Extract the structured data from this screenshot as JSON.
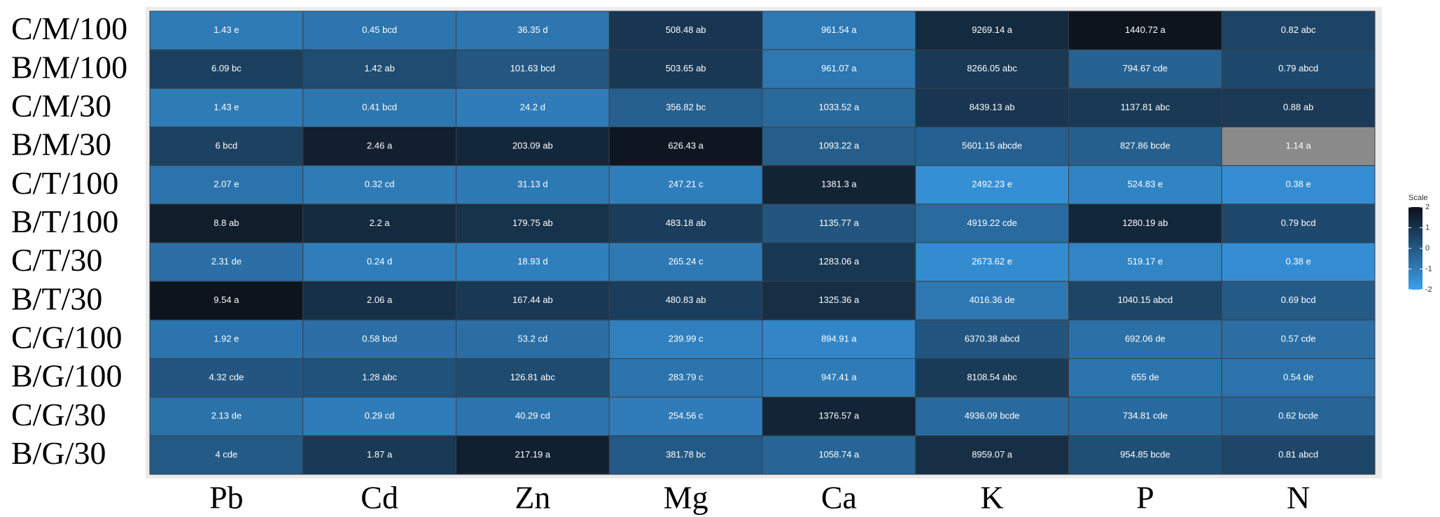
{
  "chart_data": {
    "type": "heatmap",
    "rows": [
      "C/M/100",
      "B/M/100",
      "C/M/30",
      "B/M/30",
      "C/T/100",
      "B/T/100",
      "C/T/30",
      "B/T/30",
      "C/G/100",
      "B/G/100",
      "C/G/30",
      "B/G/30"
    ],
    "columns": [
      "Pb",
      "Cd",
      "Zn",
      "Mg",
      "Ca",
      "K",
      "P",
      "N"
    ],
    "values": [
      [
        1.43,
        0.45,
        36.35,
        508.48,
        961.54,
        9269.14,
        1440.72,
        0.82
      ],
      [
        6.09,
        1.42,
        101.63,
        503.65,
        961.07,
        8266.05,
        794.67,
        0.79
      ],
      [
        1.43,
        0.41,
        24.2,
        356.82,
        1033.52,
        8439.13,
        1137.81,
        0.88
      ],
      [
        6,
        2.46,
        203.09,
        626.43,
        1093.22,
        5601.15,
        827.86,
        1.14
      ],
      [
        2.07,
        0.32,
        31.13,
        247.21,
        1381.3,
        2492.23,
        524.83,
        0.38
      ],
      [
        8.8,
        2.2,
        179.75,
        483.18,
        1135.77,
        4919.22,
        1280.19,
        0.79
      ],
      [
        2.31,
        0.24,
        18.93,
        265.24,
        1283.06,
        2673.62,
        519.17,
        0.38
      ],
      [
        9.54,
        2.06,
        167.44,
        480.83,
        1325.36,
        4016.36,
        1040.15,
        0.69
      ],
      [
        1.92,
        0.58,
        53.2,
        239.99,
        894.91,
        6370.38,
        692.06,
        0.57
      ],
      [
        4.32,
        1.28,
        126.81,
        283.79,
        947.41,
        8108.54,
        655,
        0.54
      ],
      [
        2.13,
        0.29,
        40.29,
        254.56,
        1376.57,
        4936.09,
        734.81,
        0.62
      ],
      [
        4,
        1.87,
        217.19,
        381.78,
        1058.74,
        8959.07,
        954.85,
        0.81
      ]
    ],
    "value_labels": [
      [
        "1.43 e",
        "0.45 bcd",
        "36.35 d",
        "508.48 ab",
        "961.54 a",
        "9269.14 a",
        "1440.72 a",
        "0.82 abc"
      ],
      [
        "6.09 bc",
        "1.42 ab",
        "101.63 bcd",
        "503.65 ab",
        "961.07 a",
        "8266.05 abc",
        "794.67 cde",
        "0.79 abcd"
      ],
      [
        "1.43 e",
        "0.41 bcd",
        "24.2 d",
        "356.82 bc",
        "1033.52 a",
        "8439.13 ab",
        "1137.81 abc",
        "0.88 ab"
      ],
      [
        "6 bcd",
        "2.46 a",
        "203.09 ab",
        "626.43 a",
        "1093.22 a",
        "5601.15 abcde",
        "827.86 bcde",
        "1.14 a"
      ],
      [
        "2.07 e",
        "0.32 cd",
        "31.13 d",
        "247.21 c",
        "1381.3 a",
        "2492.23 e",
        "524.83 e",
        "0.38 e"
      ],
      [
        "8.8 ab",
        "2.2 a",
        "179.75 ab",
        "483.18 ab",
        "1135.77 a",
        "4919.22 cde",
        "1280.19 ab",
        "0.79 bcd"
      ],
      [
        "2.31 de",
        "0.24 d",
        "18.93 d",
        "265.24 c",
        "1283.06 a",
        "2673.62 e",
        "519.17 e",
        "0.38 e"
      ],
      [
        "9.54 a",
        "2.06 a",
        "167.44 ab",
        "480.83 ab",
        "1325.36 a",
        "4016.36 de",
        "1040.15 abcd",
        "0.69 bcd"
      ],
      [
        "1.92 e",
        "0.58 bcd",
        "53.2 cd",
        "239.99 c",
        "894.91 a",
        "6370.38 abcd",
        "692.06 de",
        "0.57 cde"
      ],
      [
        "4.32 cde",
        "1.28 abc",
        "126.81 abc",
        "283.79 c",
        "947.41 a",
        "8108.54 abc",
        "655 de",
        "0.54 de"
      ],
      [
        "2.13 de",
        "0.29 cd",
        "40.29 cd",
        "254.56 c",
        "1376.57 a",
        "4936.09 bcde",
        "734.81 cde",
        "0.62 bcde"
      ],
      [
        "4 cde",
        "1.87 a",
        "217.19 a",
        "381.78 bc",
        "1058.74 a",
        "8959.07 a",
        "954.85 bcde",
        "0.81 abcd"
      ]
    ],
    "colorbar": {
      "title": "Scale",
      "lim": [
        -2,
        2
      ],
      "ticks": [
        -2,
        -1,
        0,
        1,
        2
      ],
      "colors": [
        "#3aa0ee",
        "#0c1018"
      ],
      "na_color": "#8a8a8a"
    },
    "scale_by": "column"
  }
}
